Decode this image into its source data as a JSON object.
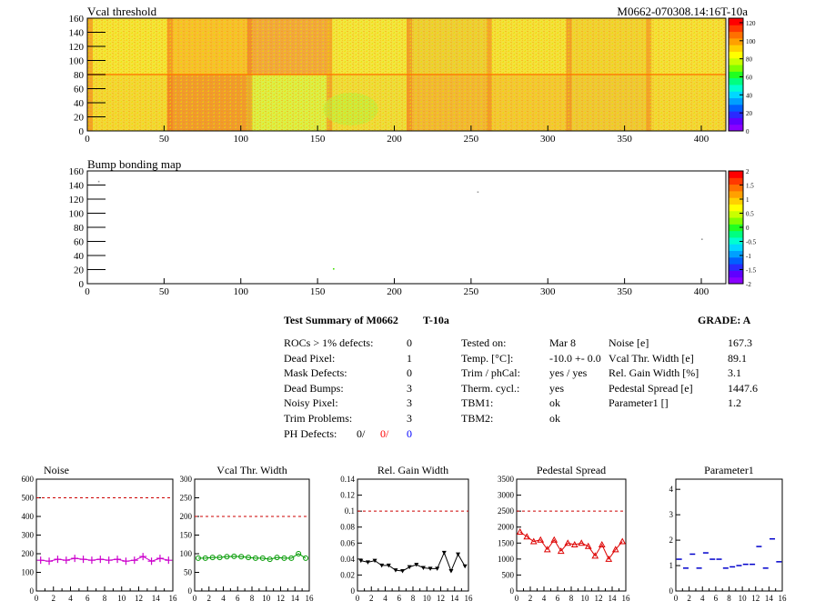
{
  "top_map": {
    "title": "Vcal threshold",
    "module_id": "M0662-070308.14:16T-10a",
    "x_ticks": [
      "0",
      "50",
      "100",
      "150",
      "200",
      "250",
      "300",
      "350",
      "400"
    ],
    "y_ticks": [
      "0",
      "20",
      "40",
      "60",
      "80",
      "100",
      "120",
      "140",
      "160"
    ],
    "scale_ticks": [
      "0",
      "20",
      "40",
      "60",
      "80",
      "100",
      "120"
    ]
  },
  "bump_map": {
    "title": "Bump bonding map",
    "x_ticks": [
      "0",
      "50",
      "100",
      "150",
      "200",
      "250",
      "300",
      "350",
      "400"
    ],
    "y_ticks": [
      "0",
      "20",
      "40",
      "60",
      "80",
      "100",
      "120",
      "140",
      "160"
    ],
    "scale_ticks": [
      "-2",
      "-1.5",
      "-1",
      "-0.5",
      "0",
      "0.5",
      "1",
      "1.5",
      "2"
    ]
  },
  "summary": {
    "heading": "Test Summary of M0662",
    "tag": "T-10a",
    "grade": "GRADE:  A",
    "left_rows": [
      {
        "label": "ROCs > 1% defects:",
        "value": "0"
      },
      {
        "label": "Dead Pixel:",
        "value": "1"
      },
      {
        "label": "Mask Defects:",
        "value": "0"
      },
      {
        "label": "Dead Bumps:",
        "value": "3"
      },
      {
        "label": "Noisy Pixel:",
        "value": "3"
      },
      {
        "label": "Trim Problems:",
        "value": "3"
      }
    ],
    "ph_label": "PH Defects:",
    "ph_values": [
      "0/",
      "0/",
      "0"
    ],
    "mid_rows": [
      {
        "label": "Tested on:",
        "value": "Mar 8"
      },
      {
        "label": "Temp. [°C]:",
        "value": "-10.0 +- 0.0"
      },
      {
        "label": "Trim / phCal:",
        "value": "yes / yes"
      },
      {
        "label": "Therm. cycl.:",
        "value": "yes"
      },
      {
        "label": "TBM1:",
        "value": "ok"
      },
      {
        "label": "TBM2:",
        "value": "ok"
      }
    ],
    "right_rows": [
      {
        "label": "Noise [e]",
        "value": "167.3"
      },
      {
        "label": "Vcal Thr. Width [e]",
        "value": "89.1"
      },
      {
        "label": "Rel. Gain Width [%]",
        "value": "3.1"
      },
      {
        "label": "Pedestal Spread [e]",
        "value": "1447.6"
      },
      {
        "label": "Parameter1 []",
        "value": "1.2"
      }
    ]
  },
  "colors": {
    "noise": "#cc00cc",
    "vcal": "#009900",
    "gain": "#000000",
    "pedestal": "#dd0000",
    "param": "#0000cc",
    "limit": "#cc0000",
    "ph_red": "#ff0000",
    "ph_blue": "#0000ff"
  },
  "chart_data": [
    {
      "type": "heatmap",
      "title": "Vcal threshold",
      "xlim": [
        0,
        416
      ],
      "ylim": [
        0,
        160
      ],
      "zlim": [
        0,
        125
      ],
      "rocs": "16 chips in 2 rows x 8 columns"
    },
    {
      "type": "heatmap",
      "title": "Bump bonding map",
      "xlim": [
        0,
        416
      ],
      "ylim": [
        0,
        160
      ],
      "zlim": [
        -2,
        2
      ],
      "points": [
        [
          7,
          146,
          0.1
        ],
        [
          160,
          22,
          0.4
        ],
        [
          254,
          131,
          0.3
        ],
        [
          400,
          64,
          0.3
        ]
      ]
    },
    {
      "type": "scatter",
      "title": "Noise",
      "xlim": [
        0,
        16
      ],
      "ylim": [
        0,
        600
      ],
      "yticks": [
        0,
        100,
        200,
        300,
        400,
        500,
        600
      ],
      "limit": 500,
      "values": [
        165,
        160,
        170,
        165,
        175,
        170,
        165,
        170,
        165,
        170,
        160,
        165,
        185,
        160,
        175,
        165
      ]
    },
    {
      "type": "scatter",
      "title": "Vcal Thr. Width",
      "xlim": [
        0,
        16
      ],
      "ylim": [
        0,
        300
      ],
      "yticks": [
        0,
        50,
        100,
        150,
        200,
        250,
        300
      ],
      "limit": 200,
      "values": [
        88,
        88,
        90,
        90,
        92,
        93,
        92,
        90,
        88,
        88,
        85,
        90,
        88,
        88,
        100,
        88
      ]
    },
    {
      "type": "scatter",
      "title": "Rel. Gain Width",
      "xlim": [
        0,
        16
      ],
      "ylim": [
        0,
        0.14
      ],
      "yticks": [
        0,
        0.02,
        0.04,
        0.06,
        0.08,
        0.1,
        0.12,
        0.14
      ],
      "limit": 0.1,
      "values": [
        0.038,
        0.036,
        0.038,
        0.032,
        0.032,
        0.026,
        0.025,
        0.03,
        0.033,
        0.029,
        0.028,
        0.028,
        0.048,
        0.025,
        0.046,
        0.031
      ]
    },
    {
      "type": "scatter",
      "title": "Pedestal Spread",
      "xlim": [
        0,
        16
      ],
      "ylim": [
        0,
        3500
      ],
      "yticks": [
        0,
        500,
        1000,
        1500,
        2000,
        2500,
        3000,
        3500
      ],
      "limit": 2500,
      "values": [
        1850,
        1700,
        1550,
        1600,
        1300,
        1600,
        1250,
        1500,
        1450,
        1500,
        1400,
        1100,
        1450,
        1000,
        1300,
        1550
      ]
    },
    {
      "type": "scatter",
      "title": "Parameter1",
      "xlim": [
        0,
        16
      ],
      "ylim": [
        0,
        4.4
      ],
      "yticks": [
        0,
        1,
        2,
        3,
        4
      ],
      "limit": null,
      "values": [
        1.25,
        0.9,
        1.45,
        0.9,
        1.5,
        1.25,
        1.25,
        0.9,
        0.95,
        1.0,
        1.05,
        1.05,
        1.75,
        0.9,
        2.05,
        1.15
      ]
    }
  ]
}
